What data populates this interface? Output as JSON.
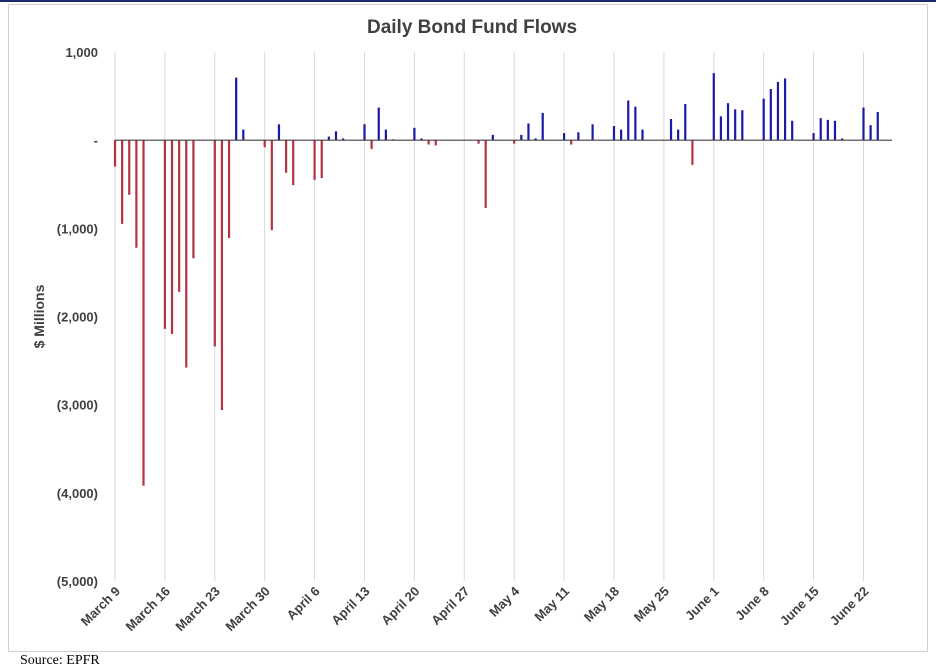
{
  "chart_data": {
    "type": "bar",
    "title": "Daily Bond Fund Flows",
    "xlabel": "",
    "ylabel": "$ Millions",
    "source": "Source: EPFR",
    "ylim": [
      -5000,
      1000
    ],
    "grid": "vertical",
    "legend": "none",
    "colors": {
      "positive": "#1a1aa6",
      "negative": "#b5323f",
      "axis": "#404040",
      "grid": "#d9d9d9"
    },
    "y_ticks": [
      {
        "value": 1000,
        "label": "1,000"
      },
      {
        "value": 0,
        "label": "-"
      },
      {
        "value": -1000,
        "label": "(1,000)"
      },
      {
        "value": -2000,
        "label": "(2,000)"
      },
      {
        "value": -3000,
        "label": "(3,000)"
      },
      {
        "value": -4000,
        "label": "(4,000)"
      },
      {
        "value": -5000,
        "label": "(5,000)"
      }
    ],
    "x_ticks": [
      {
        "date": "2020-03-09",
        "label": "March 9"
      },
      {
        "date": "2020-03-16",
        "label": "March 16"
      },
      {
        "date": "2020-03-23",
        "label": "March 23"
      },
      {
        "date": "2020-03-30",
        "label": "March 30"
      },
      {
        "date": "2020-04-06",
        "label": "April 6"
      },
      {
        "date": "2020-04-13",
        "label": "April 13"
      },
      {
        "date": "2020-04-20",
        "label": "April 20"
      },
      {
        "date": "2020-04-27",
        "label": "April 27"
      },
      {
        "date": "2020-05-04",
        "label": "May 4"
      },
      {
        "date": "2020-05-11",
        "label": "May 11"
      },
      {
        "date": "2020-05-18",
        "label": "May 18"
      },
      {
        "date": "2020-05-25",
        "label": "May 25"
      },
      {
        "date": "2020-06-01",
        "label": "June 1"
      },
      {
        "date": "2020-06-08",
        "label": "June 8"
      },
      {
        "date": "2020-06-15",
        "label": "June 15"
      },
      {
        "date": "2020-06-22",
        "label": "June 22"
      }
    ],
    "x_range": [
      "2020-03-09",
      "2020-06-26"
    ],
    "points": [
      {
        "date": "2020-03-09",
        "value": -300
      },
      {
        "date": "2020-03-10",
        "value": -950
      },
      {
        "date": "2020-03-11",
        "value": -620
      },
      {
        "date": "2020-03-12",
        "value": -1220
      },
      {
        "date": "2020-03-13",
        "value": -3920
      },
      {
        "date": "2020-03-16",
        "value": -2140
      },
      {
        "date": "2020-03-17",
        "value": -2200
      },
      {
        "date": "2020-03-18",
        "value": -1720
      },
      {
        "date": "2020-03-19",
        "value": -2580
      },
      {
        "date": "2020-03-20",
        "value": -1340
      },
      {
        "date": "2020-03-23",
        "value": -2340
      },
      {
        "date": "2020-03-24",
        "value": -3060
      },
      {
        "date": "2020-03-25",
        "value": -1110
      },
      {
        "date": "2020-03-26",
        "value": 710
      },
      {
        "date": "2020-03-27",
        "value": 120
      },
      {
        "date": "2020-03-30",
        "value": -80
      },
      {
        "date": "2020-03-31",
        "value": -1020
      },
      {
        "date": "2020-04-01",
        "value": 180
      },
      {
        "date": "2020-04-02",
        "value": -370
      },
      {
        "date": "2020-04-03",
        "value": -510
      },
      {
        "date": "2020-04-06",
        "value": -450
      },
      {
        "date": "2020-04-07",
        "value": -430
      },
      {
        "date": "2020-04-08",
        "value": 40
      },
      {
        "date": "2020-04-09",
        "value": 100
      },
      {
        "date": "2020-04-10",
        "value": 20
      },
      {
        "date": "2020-04-13",
        "value": 180
      },
      {
        "date": "2020-04-14",
        "value": -100
      },
      {
        "date": "2020-04-15",
        "value": 370
      },
      {
        "date": "2020-04-16",
        "value": 120
      },
      {
        "date": "2020-04-17",
        "value": 10
      },
      {
        "date": "2020-04-20",
        "value": 140
      },
      {
        "date": "2020-04-21",
        "value": 20
      },
      {
        "date": "2020-04-22",
        "value": -50
      },
      {
        "date": "2020-04-23",
        "value": -60
      },
      {
        "date": "2020-04-29",
        "value": -40
      },
      {
        "date": "2020-04-30",
        "value": -770
      },
      {
        "date": "2020-05-01",
        "value": 60
      },
      {
        "date": "2020-05-04",
        "value": -40
      },
      {
        "date": "2020-05-05",
        "value": 60
      },
      {
        "date": "2020-05-06",
        "value": 190
      },
      {
        "date": "2020-05-07",
        "value": 20
      },
      {
        "date": "2020-05-08",
        "value": 310
      },
      {
        "date": "2020-05-11",
        "value": 80
      },
      {
        "date": "2020-05-12",
        "value": -50
      },
      {
        "date": "2020-05-13",
        "value": 90
      },
      {
        "date": "2020-05-15",
        "value": 180
      },
      {
        "date": "2020-05-18",
        "value": 160
      },
      {
        "date": "2020-05-19",
        "value": 120
      },
      {
        "date": "2020-05-20",
        "value": 450
      },
      {
        "date": "2020-05-21",
        "value": 380
      },
      {
        "date": "2020-05-22",
        "value": 120
      },
      {
        "date": "2020-05-26",
        "value": 240
      },
      {
        "date": "2020-05-27",
        "value": 120
      },
      {
        "date": "2020-05-28",
        "value": 410
      },
      {
        "date": "2020-05-29",
        "value": -280
      },
      {
        "date": "2020-06-01",
        "value": 760
      },
      {
        "date": "2020-06-02",
        "value": 270
      },
      {
        "date": "2020-06-03",
        "value": 420
      },
      {
        "date": "2020-06-04",
        "value": 350
      },
      {
        "date": "2020-06-05",
        "value": 340
      },
      {
        "date": "2020-06-08",
        "value": 470
      },
      {
        "date": "2020-06-09",
        "value": 580
      },
      {
        "date": "2020-06-10",
        "value": 660
      },
      {
        "date": "2020-06-11",
        "value": 700
      },
      {
        "date": "2020-06-12",
        "value": 220
      },
      {
        "date": "2020-06-15",
        "value": 80
      },
      {
        "date": "2020-06-16",
        "value": 250
      },
      {
        "date": "2020-06-17",
        "value": 230
      },
      {
        "date": "2020-06-18",
        "value": 220
      },
      {
        "date": "2020-06-19",
        "value": 20
      },
      {
        "date": "2020-06-22",
        "value": 370
      },
      {
        "date": "2020-06-23",
        "value": 170
      },
      {
        "date": "2020-06-24",
        "value": 320
      }
    ]
  }
}
